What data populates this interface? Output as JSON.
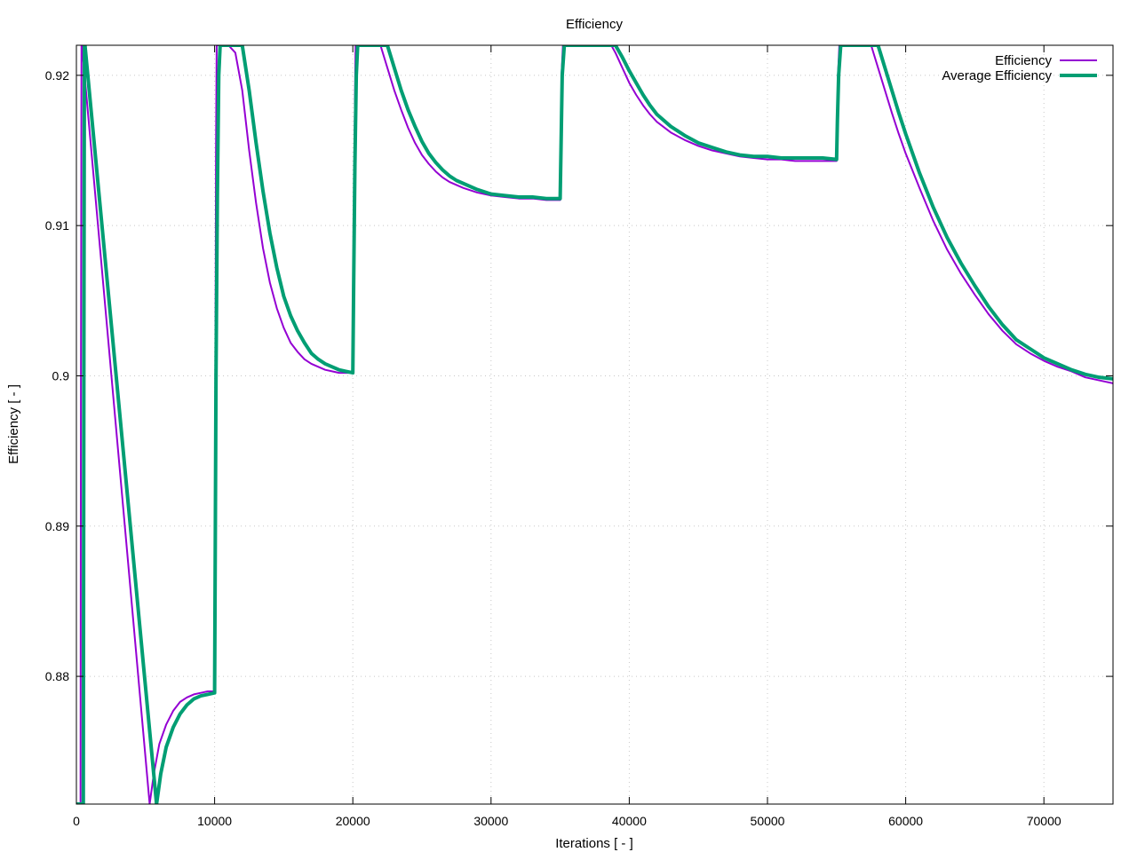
{
  "chart_data": {
    "type": "line",
    "title": "Efficiency",
    "xlabel": "Iterations [ - ]",
    "ylabel": "Efficiency [ - ]",
    "xlim": [
      0,
      75000
    ],
    "ylim": [
      0.8715,
      0.922
    ],
    "x_ticks": [
      0,
      10000,
      20000,
      30000,
      40000,
      50000,
      60000,
      70000
    ],
    "x_tick_labels": [
      "0",
      "10000",
      "20000",
      "30000",
      "40000",
      "50000",
      "60000",
      "70000"
    ],
    "y_ticks": [
      0.88,
      0.89,
      0.9,
      0.91,
      0.92
    ],
    "y_tick_labels": [
      "0.88",
      "0.89",
      "0.9",
      "0.91",
      "0.92"
    ],
    "grid": true,
    "legend_position": "top-right",
    "series": [
      {
        "name": "Efficiency",
        "color": "#9400d3",
        "x": [
          0,
          300,
          330,
          370,
          400,
          5300,
          5600,
          6000,
          6500,
          7000,
          7500,
          8000,
          8500,
          9000,
          9500,
          10000,
          10030,
          10060,
          10100,
          10150,
          10200,
          10300,
          11000,
          11500,
          12000,
          12500,
          13000,
          13500,
          14000,
          14500,
          15000,
          15500,
          16000,
          16500,
          17000,
          17500,
          18000,
          18500,
          19000,
          19500,
          20000,
          20050,
          20100,
          20150,
          20200,
          22000,
          22500,
          23000,
          23500,
          24000,
          24500,
          25000,
          25500,
          26000,
          26500,
          27000,
          27500,
          28000,
          29000,
          30000,
          31000,
          32000,
          33000,
          34000,
          35000,
          35050,
          35100,
          35200,
          38700,
          39000,
          39500,
          40000,
          40500,
          41000,
          41500,
          42000,
          43000,
          44000,
          45000,
          46000,
          47000,
          48000,
          49000,
          50000,
          51000,
          52000,
          53000,
          54000,
          55000,
          55050,
          55100,
          55200,
          57500,
          58000,
          58500,
          59000,
          59500,
          60000,
          61000,
          62000,
          63000,
          64000,
          65000,
          66000,
          67000,
          68000,
          69000,
          70000,
          71000,
          72000,
          73000,
          74000,
          75000
        ],
        "y": [
          0.8715,
          0.8715,
          0.9,
          0.922,
          0.922,
          0.8715,
          0.8735,
          0.8755,
          0.8768,
          0.8777,
          0.8783,
          0.8786,
          0.8788,
          0.8789,
          0.879,
          0.879,
          0.885,
          0.9,
          0.915,
          0.922,
          0.922,
          0.922,
          0.922,
          0.9215,
          0.919,
          0.915,
          0.9115,
          0.9085,
          0.9062,
          0.9045,
          0.9032,
          0.9022,
          0.9016,
          0.9011,
          0.9008,
          0.9006,
          0.9004,
          0.9003,
          0.9002,
          0.9002,
          0.9002,
          0.905,
          0.912,
          0.918,
          0.922,
          0.922,
          0.9205,
          0.919,
          0.9177,
          0.9165,
          0.9155,
          0.9147,
          0.9141,
          0.9136,
          0.9132,
          0.9129,
          0.9127,
          0.9125,
          0.9122,
          0.912,
          0.9119,
          0.9118,
          0.9118,
          0.9117,
          0.9117,
          0.915,
          0.92,
          0.922,
          0.922,
          0.9215,
          0.9205,
          0.9195,
          0.9187,
          0.918,
          0.9174,
          0.9169,
          0.9162,
          0.9157,
          0.9153,
          0.915,
          0.9148,
          0.9146,
          0.9145,
          0.9144,
          0.9144,
          0.9143,
          0.9143,
          0.9143,
          0.9143,
          0.917,
          0.92,
          0.922,
          0.922,
          0.9205,
          0.919,
          0.9175,
          0.9161,
          0.9148,
          0.9125,
          0.9103,
          0.9084,
          0.9068,
          0.9054,
          0.9041,
          0.903,
          0.9021,
          0.9015,
          0.901,
          0.9006,
          0.9003,
          0.8999,
          0.8997,
          0.8995
        ]
      },
      {
        "name": "Average Efficiency",
        "color": "#009e73",
        "x": [
          0,
          500,
          540,
          580,
          620,
          5800,
          6100,
          6500,
          7000,
          7500,
          8000,
          8500,
          9000,
          9500,
          10000,
          10040,
          10100,
          10200,
          10300,
          10400,
          11000,
          11500,
          12000,
          12500,
          13000,
          13500,
          14000,
          14500,
          15000,
          15500,
          16000,
          16500,
          17000,
          17500,
          18000,
          18500,
          19000,
          19500,
          20000,
          20060,
          20150,
          20250,
          20350,
          22500,
          23000,
          23500,
          24000,
          24500,
          25000,
          25500,
          26000,
          26500,
          27000,
          27500,
          28000,
          29000,
          30000,
          31000,
          32000,
          33000,
          34000,
          35000,
          35060,
          35150,
          35300,
          39000,
          39500,
          40000,
          40500,
          41000,
          41500,
          42000,
          43000,
          44000,
          45000,
          46000,
          47000,
          48000,
          49000,
          50000,
          51000,
          52000,
          53000,
          54000,
          55000,
          55060,
          55150,
          55300,
          58000,
          58500,
          59000,
          59500,
          60000,
          61000,
          62000,
          63000,
          64000,
          65000,
          66000,
          67000,
          68000,
          69000,
          70000,
          71000,
          72000,
          73000,
          74000,
          75000
        ],
        "y": [
          0.8715,
          0.8715,
          0.9,
          0.922,
          0.922,
          0.8715,
          0.8735,
          0.8753,
          0.8766,
          0.8775,
          0.8781,
          0.8785,
          0.8787,
          0.8788,
          0.8789,
          0.887,
          0.9,
          0.912,
          0.92,
          0.922,
          0.922,
          0.922,
          0.922,
          0.919,
          0.9155,
          0.9123,
          0.9095,
          0.9072,
          0.9053,
          0.904,
          0.903,
          0.9022,
          0.9015,
          0.9011,
          0.9008,
          0.9006,
          0.9004,
          0.9003,
          0.9002,
          0.906,
          0.914,
          0.92,
          0.922,
          0.922,
          0.9205,
          0.919,
          0.9177,
          0.9166,
          0.9156,
          0.9148,
          0.9142,
          0.9137,
          0.9133,
          0.913,
          0.9128,
          0.9124,
          0.9121,
          0.912,
          0.9119,
          0.9119,
          0.9118,
          0.9118,
          0.915,
          0.92,
          0.922,
          0.922,
          0.9212,
          0.9203,
          0.9195,
          0.9187,
          0.918,
          0.9174,
          0.9166,
          0.916,
          0.9155,
          0.9152,
          0.9149,
          0.9147,
          0.9146,
          0.9146,
          0.9145,
          0.9145,
          0.9145,
          0.9145,
          0.9144,
          0.917,
          0.92,
          0.922,
          0.922,
          0.9205,
          0.919,
          0.9175,
          0.9161,
          0.9135,
          0.9112,
          0.9092,
          0.9075,
          0.906,
          0.9046,
          0.9034,
          0.9024,
          0.9018,
          0.9012,
          0.9008,
          0.9004,
          0.9001,
          0.8999,
          0.8998
        ]
      }
    ]
  }
}
